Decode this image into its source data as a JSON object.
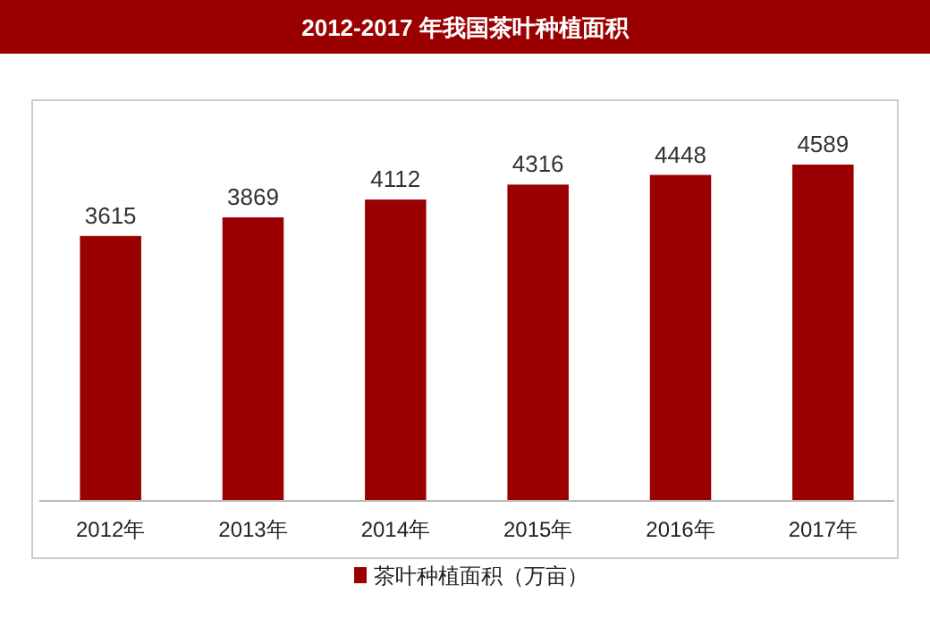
{
  "chart_data": {
    "type": "bar",
    "title": "2012-2017 年我国茶叶种植面积",
    "categories": [
      "2012年",
      "2013年",
      "2014年",
      "2015年",
      "2016年",
      "2017年"
    ],
    "series": [
      {
        "name": "茶叶种植面积（万亩）",
        "color": "#9a0000",
        "values": [
          3615,
          3869,
          4112,
          4316,
          4448,
          4589
        ]
      }
    ],
    "data_labels": true,
    "legend": "bottom"
  }
}
